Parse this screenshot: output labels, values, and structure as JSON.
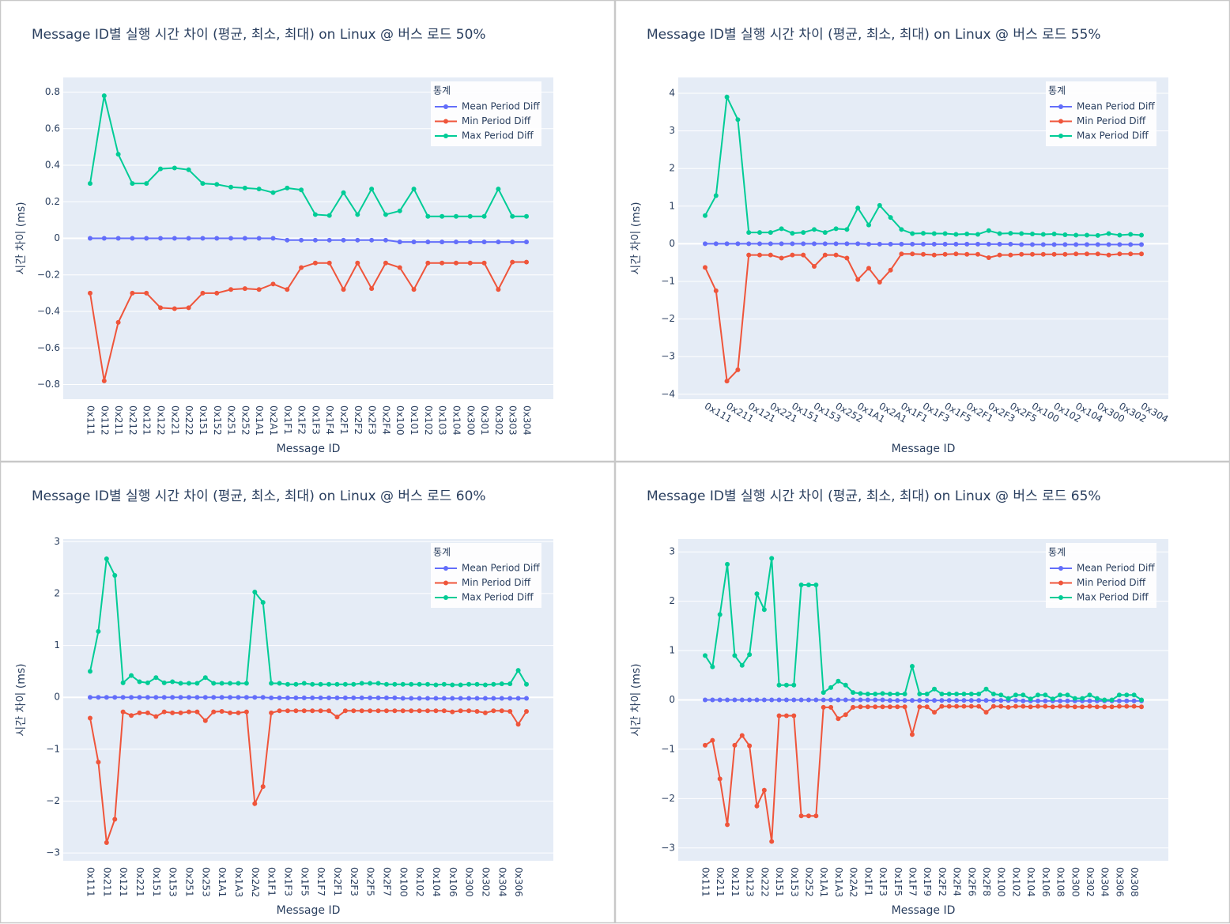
{
  "chart_data": [
    {
      "type": "line",
      "title": "Message ID별 실행 시간 차이 (평균, 최소, 최대) on Linux @ 버스 로드 50%",
      "x_label": "Message ID",
      "y_label": "시간 차이 (ms)",
      "legend_title": "통계",
      "legend_position": "top-right",
      "grid": true,
      "x_tick_angle": 90,
      "categories": [
        "0x111",
        "0x112",
        "0x211",
        "0x212",
        "0x121",
        "0x122",
        "0x221",
        "0x222",
        "0x151",
        "0x152",
        "0x251",
        "0x252",
        "0x1A1",
        "0x2A1",
        "0x1F1",
        "0x1F2",
        "0x1F3",
        "0x1F4",
        "0x2F1",
        "0x2F2",
        "0x2F3",
        "0x2F4",
        "0x100",
        "0x101",
        "0x102",
        "0x103",
        "0x104",
        "0x300",
        "0x301",
        "0x302",
        "0x303",
        "0x304"
      ],
      "series": [
        {
          "name": "Mean Period Diff",
          "color": "#636efa",
          "values": [
            0,
            0,
            0,
            0,
            0,
            0,
            0,
            0,
            0,
            0,
            0,
            0,
            0,
            0,
            -0.01,
            -0.01,
            -0.01,
            -0.01,
            -0.01,
            -0.01,
            -0.01,
            -0.01,
            -0.02,
            -0.02,
            -0.02,
            -0.02,
            -0.02,
            -0.02,
            -0.02,
            -0.02,
            -0.02,
            -0.02
          ]
        },
        {
          "name": "Min Period Diff",
          "color": "#ef553b",
          "values": [
            -0.3,
            -0.78,
            -0.46,
            -0.3,
            -0.3,
            -0.38,
            -0.385,
            -0.38,
            -0.3,
            -0.3,
            -0.28,
            -0.275,
            -0.28,
            -0.25,
            -0.28,
            -0.16,
            -0.135,
            -0.135,
            -0.28,
            -0.135,
            -0.275,
            -0.135,
            -0.16,
            -0.28,
            -0.135,
            -0.135,
            -0.135,
            -0.135,
            -0.135,
            -0.28,
            -0.13,
            -0.13
          ]
        },
        {
          "name": "Max Period Diff",
          "color": "#00cc96",
          "values": [
            0.3,
            0.78,
            0.46,
            0.3,
            0.3,
            0.38,
            0.385,
            0.375,
            0.3,
            0.295,
            0.28,
            0.275,
            0.27,
            0.25,
            0.275,
            0.265,
            0.13,
            0.125,
            0.25,
            0.13,
            0.27,
            0.13,
            0.15,
            0.27,
            0.12,
            0.12,
            0.12,
            0.12,
            0.12,
            0.27,
            0.12,
            0.12
          ]
        }
      ],
      "ylim": [
        -0.88,
        0.88
      ],
      "yticks": [
        {
          "value": -0.8,
          "label": "−0.8"
        },
        {
          "value": -0.6,
          "label": "−0.6"
        },
        {
          "value": -0.4,
          "label": "−0.4"
        },
        {
          "value": -0.2,
          "label": "−0.2"
        },
        0,
        0.2,
        0.4,
        0.6,
        0.8
      ]
    },
    {
      "type": "line",
      "title": "Message ID별 실행 시간 차이 (평균, 최소, 최대) on Linux @ 버스 로드 55%",
      "x_label": "Message ID",
      "y_label": "시간 차이 (ms)",
      "legend_title": "통계",
      "legend_position": "top-right",
      "grid": true,
      "x_tick_angle": 30,
      "categories": [
        "0x111",
        null,
        "0x211",
        null,
        "0x121",
        null,
        "0x221",
        null,
        "0x151",
        null,
        "0x153",
        null,
        "0x252",
        null,
        "0x1A1",
        null,
        "0x2A1",
        null,
        "0x1F1",
        null,
        "0x1F3",
        null,
        "0x1F5",
        null,
        "0x2F1",
        null,
        "0x2F3",
        null,
        "0x2F5",
        null,
        "0x100",
        null,
        "0x102",
        null,
        "0x104",
        null,
        "0x300",
        null,
        "0x302",
        null,
        "0x304"
      ],
      "series": [
        {
          "name": "Mean Period Diff",
          "color": "#636efa",
          "values": [
            0,
            0,
            0,
            0,
            0,
            0,
            0,
            0,
            0,
            0,
            0,
            0,
            0,
            0,
            0,
            -0.01,
            -0.01,
            -0.01,
            -0.01,
            -0.01,
            -0.01,
            -0.01,
            -0.01,
            -0.01,
            -0.01,
            -0.01,
            -0.01,
            -0.01,
            -0.01,
            -0.02,
            -0.02,
            -0.02,
            -0.02,
            -0.02,
            -0.02,
            -0.02,
            -0.02,
            -0.02,
            -0.02,
            -0.02,
            -0.02
          ]
        },
        {
          "name": "Min Period Diff",
          "color": "#ef553b",
          "values": [
            -0.63,
            -1.25,
            -3.65,
            -3.35,
            -0.3,
            -0.3,
            -0.3,
            -0.38,
            -0.3,
            -0.3,
            -0.6,
            -0.3,
            -0.3,
            -0.38,
            -0.95,
            -0.65,
            -1.02,
            -0.7,
            -0.27,
            -0.27,
            -0.28,
            -0.3,
            -0.28,
            -0.27,
            -0.28,
            -0.28,
            -0.37,
            -0.3,
            -0.3,
            -0.28,
            -0.28,
            -0.28,
            -0.28,
            -0.28,
            -0.27,
            -0.27,
            -0.27,
            -0.3,
            -0.27,
            -0.27,
            -0.27
          ]
        },
        {
          "name": "Max Period Diff",
          "color": "#00cc96",
          "values": [
            0.75,
            1.28,
            3.9,
            3.3,
            0.3,
            0.3,
            0.3,
            0.4,
            0.28,
            0.3,
            0.38,
            0.3,
            0.4,
            0.38,
            0.95,
            0.5,
            1.02,
            0.7,
            0.38,
            0.27,
            0.28,
            0.27,
            0.27,
            0.25,
            0.26,
            0.25,
            0.35,
            0.27,
            0.28,
            0.27,
            0.26,
            0.25,
            0.26,
            0.24,
            0.23,
            0.23,
            0.22,
            0.27,
            0.23,
            0.25,
            0.23
          ]
        }
      ],
      "ylim": [
        -4.13,
        4.42
      ],
      "yticks": [
        {
          "value": -4,
          "label": "−4"
        },
        {
          "value": -3,
          "label": "−3"
        },
        {
          "value": -2,
          "label": "−2"
        },
        {
          "value": -1,
          "label": "−1"
        },
        0,
        1,
        2,
        3,
        4
      ]
    },
    {
      "type": "line",
      "title": "Message ID별 실행 시간 차이 (평균, 최소, 최대) on Linux @ 버스 로드 60%",
      "x_label": "Message ID",
      "y_label": "시간 차이 (ms)",
      "legend_title": "통계",
      "legend_position": "top-right",
      "grid": true,
      "x_tick_angle": 90,
      "categories": [
        "0x111",
        null,
        "0x211",
        null,
        "0x121",
        null,
        "0x221",
        null,
        "0x151",
        null,
        "0x153",
        null,
        "0x251",
        null,
        "0x253",
        null,
        "0x1A1",
        null,
        "0x1A3",
        null,
        "0x2A2",
        null,
        "0x1F1",
        null,
        "0x1F3",
        null,
        "0x1F5",
        null,
        "0x1F7",
        null,
        "0x2F1",
        null,
        "0x2F3",
        null,
        "0x2F5",
        null,
        "0x2F7",
        null,
        "0x100",
        null,
        "0x102",
        null,
        "0x104",
        null,
        "0x106",
        null,
        "0x300",
        null,
        "0x302",
        null,
        "0x304",
        null,
        "0x306",
        null
      ],
      "series": [
        {
          "name": "Mean Period Diff",
          "color": "#636efa",
          "values": [
            0,
            0,
            0,
            0,
            0,
            0,
            0,
            0,
            0,
            0,
            0,
            0,
            0,
            0,
            0,
            0,
            0,
            0,
            0,
            0,
            0,
            0,
            -0.01,
            -0.01,
            -0.01,
            -0.01,
            -0.01,
            -0.01,
            -0.01,
            -0.01,
            -0.01,
            -0.01,
            -0.01,
            -0.01,
            -0.01,
            -0.01,
            -0.01,
            -0.01,
            -0.02,
            -0.02,
            -0.02,
            -0.02,
            -0.02,
            -0.02,
            -0.02,
            -0.02,
            -0.02,
            -0.02,
            -0.02,
            -0.02,
            -0.02,
            -0.02,
            -0.02,
            -0.02
          ]
        },
        {
          "name": "Min Period Diff",
          "color": "#ef553b",
          "values": [
            -0.4,
            -1.25,
            -2.8,
            -2.35,
            -0.28,
            -0.35,
            -0.3,
            -0.3,
            -0.37,
            -0.28,
            -0.3,
            -0.3,
            -0.28,
            -0.28,
            -0.45,
            -0.28,
            -0.27,
            -0.3,
            -0.3,
            -0.28,
            -2.05,
            -1.72,
            -0.3,
            -0.26,
            -0.26,
            -0.26,
            -0.26,
            -0.26,
            -0.26,
            -0.26,
            -0.38,
            -0.26,
            -0.26,
            -0.26,
            -0.26,
            -0.26,
            -0.26,
            -0.26,
            -0.26,
            -0.26,
            -0.26,
            -0.26,
            -0.26,
            -0.26,
            -0.28,
            -0.26,
            -0.26,
            -0.27,
            -0.3,
            -0.26,
            -0.26,
            -0.27,
            -0.52,
            -0.27
          ]
        },
        {
          "name": "Max Period Diff",
          "color": "#00cc96",
          "values": [
            0.5,
            1.27,
            2.67,
            2.35,
            0.28,
            0.42,
            0.3,
            0.28,
            0.38,
            0.28,
            0.3,
            0.27,
            0.27,
            0.27,
            0.38,
            0.27,
            0.27,
            0.27,
            0.27,
            0.27,
            2.03,
            1.83,
            0.27,
            0.27,
            0.25,
            0.25,
            0.27,
            0.25,
            0.25,
            0.25,
            0.25,
            0.25,
            0.25,
            0.27,
            0.27,
            0.27,
            0.25,
            0.25,
            0.25,
            0.25,
            0.25,
            0.25,
            0.24,
            0.25,
            0.24,
            0.24,
            0.25,
            0.25,
            0.24,
            0.25,
            0.26,
            0.26,
            0.52,
            0.25
          ]
        }
      ],
      "ylim": [
        -3.15,
        3.05
      ],
      "yticks": [
        {
          "value": -3,
          "label": "−3"
        },
        {
          "value": -2,
          "label": "−2"
        },
        {
          "value": -1,
          "label": "−1"
        },
        0,
        1,
        2,
        3
      ]
    },
    {
      "type": "line",
      "title": "Message ID별 실행 시간 차이 (평균, 최소, 최대) on Linux @ 버스 로드 65%",
      "x_label": "Message ID",
      "y_label": "시간 차이 (ms)",
      "legend_title": "통계",
      "legend_position": "top-right",
      "grid": true,
      "x_tick_angle": 90,
      "categories": [
        "0x111",
        null,
        "0x211",
        null,
        "0x121",
        null,
        "0x123",
        null,
        "0x222",
        null,
        "0x151",
        null,
        "0x153",
        null,
        "0x252",
        null,
        "0x1A1",
        null,
        "0x1A3",
        null,
        "0x2A2",
        null,
        "0x1F1",
        null,
        "0x1F3",
        null,
        "0x1F5",
        null,
        "0x1F7",
        null,
        "0x1F9",
        null,
        "0x2F2",
        null,
        "0x2F4",
        null,
        "0x2F6",
        null,
        "0x2F8",
        null,
        "0x100",
        null,
        "0x102",
        null,
        "0x104",
        null,
        "0x106",
        null,
        "0x108",
        null,
        "0x300",
        null,
        "0x302",
        null,
        "0x304",
        null,
        "0x306",
        null,
        "0x308",
        null
      ],
      "series": [
        {
          "name": "Mean Period Diff",
          "color": "#636efa",
          "values": [
            0,
            0,
            0,
            0,
            0,
            0,
            0,
            0,
            0,
            0,
            0,
            0,
            0,
            0,
            0,
            0,
            0,
            0,
            0,
            0,
            0,
            0,
            0,
            0,
            0,
            -0.01,
            -0.01,
            -0.01,
            -0.01,
            -0.01,
            -0.01,
            -0.01,
            -0.01,
            -0.01,
            -0.01,
            -0.01,
            -0.01,
            -0.01,
            -0.01,
            -0.01,
            -0.01,
            -0.01,
            -0.01,
            -0.02,
            -0.02,
            -0.02,
            -0.02,
            -0.02,
            -0.02,
            -0.02,
            -0.02,
            -0.02,
            -0.02,
            -0.02,
            -0.02,
            -0.02,
            -0.02,
            -0.02,
            -0.02,
            -0.02
          ]
        },
        {
          "name": "Min Period Diff",
          "color": "#ef553b",
          "values": [
            -0.92,
            -0.82,
            -1.6,
            -2.53,
            -0.92,
            -0.72,
            -0.93,
            -2.15,
            -1.83,
            -2.87,
            -0.32,
            -0.32,
            -0.32,
            -2.35,
            -2.35,
            -2.35,
            -0.15,
            -0.15,
            -0.38,
            -0.3,
            -0.15,
            -0.14,
            -0.14,
            -0.14,
            -0.14,
            -0.14,
            -0.14,
            -0.14,
            -0.7,
            -0.14,
            -0.14,
            -0.25,
            -0.13,
            -0.13,
            -0.13,
            -0.13,
            -0.13,
            -0.13,
            -0.25,
            -0.13,
            -0.13,
            -0.15,
            -0.13,
            -0.13,
            -0.14,
            -0.13,
            -0.13,
            -0.14,
            -0.13,
            -0.13,
            -0.14,
            -0.14,
            -0.13,
            -0.14,
            -0.14,
            -0.14,
            -0.13,
            -0.13,
            -0.13,
            -0.14
          ]
        },
        {
          "name": "Max Period Diff",
          "color": "#00cc96",
          "values": [
            0.9,
            0.67,
            1.73,
            2.75,
            0.9,
            0.7,
            0.92,
            2.15,
            1.83,
            2.87,
            0.3,
            0.3,
            0.3,
            2.33,
            2.33,
            2.33,
            0.15,
            0.25,
            0.38,
            0.3,
            0.15,
            0.13,
            0.12,
            0.12,
            0.13,
            0.12,
            0.12,
            0.12,
            0.68,
            0.12,
            0.12,
            0.22,
            0.12,
            0.12,
            0.12,
            0.12,
            0.12,
            0.12,
            0.22,
            0.12,
            0.1,
            0.03,
            0.1,
            0.1,
            0.02,
            0.1,
            0.1,
            0.02,
            0.1,
            0.1,
            0.03,
            0.03,
            0.1,
            0.03,
            0,
            0,
            0.1,
            0.1,
            0.1,
            0
          ]
        }
      ],
      "ylim": [
        -3.26,
        3.26
      ],
      "yticks": [
        {
          "value": -3,
          "label": "−3"
        },
        {
          "value": -2,
          "label": "−2"
        },
        {
          "value": -1,
          "label": "−1"
        },
        0,
        1,
        2,
        3
      ]
    }
  ]
}
